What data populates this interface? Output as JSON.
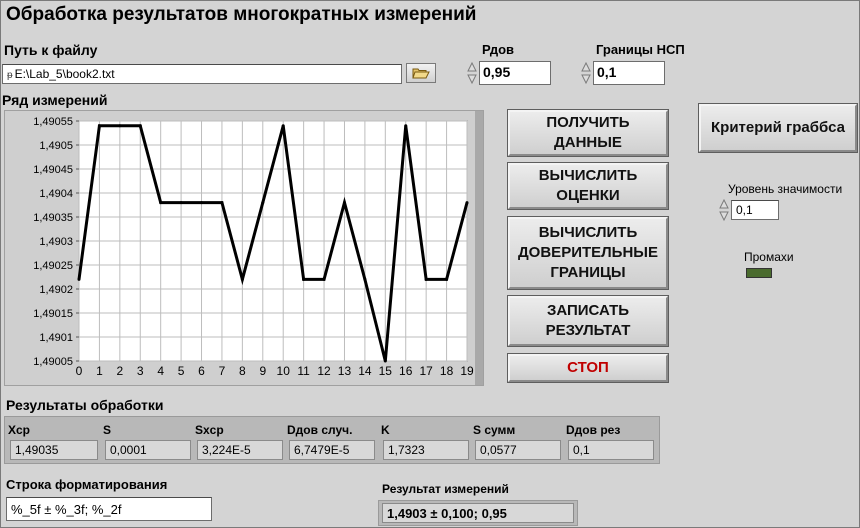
{
  "title": "Обработка результатов многократных измерений",
  "file": {
    "label": "Путь к файлу",
    "value": "E:\\Lab_5\\book2.txt",
    "icon": "folder-icon"
  },
  "rdov": {
    "label": "Рдов",
    "value": "0,95"
  },
  "nsp": {
    "label": "Границы НСП",
    "value": "0,1"
  },
  "chart_label": "Ряд измерений",
  "buttons": {
    "get_data": "ПОЛУЧИТЬ\nДАННЫЕ",
    "compute_estimates": "ВЫЧИСЛИТЬ\nОЦЕНКИ",
    "compute_bounds": "ВЫЧИСЛИТЬ\nДОВЕРИТЕЛЬНЫЕ\nГРАНИЦЫ",
    "write_result": "ЗАПИСАТЬ\nРЕЗУЛЬТАТ",
    "stop": "СТОП",
    "grubbs": "Критерий граббса"
  },
  "significance": {
    "label": "Уровень значимости",
    "value": "0,1"
  },
  "misses": {
    "label": "Промахи",
    "color": "#4a6b2e"
  },
  "results": {
    "label": "Результаты обработки",
    "columns": [
      {
        "header": "Xcp",
        "value": "1,49035"
      },
      {
        "header": "S",
        "value": "0,0001"
      },
      {
        "header": "Sxcp",
        "value": "3,224E-5"
      },
      {
        "header": "Dдов случ.",
        "value": "6,7479E-5"
      },
      {
        "header": "K",
        "value": "1,7323"
      },
      {
        "header": "S сумм",
        "value": "0,0577"
      },
      {
        "header": "Dдов рез",
        "value": "0,1"
      }
    ]
  },
  "format": {
    "label": "Строка форматирования",
    "value": "%_5f ± %_3f; %_2f"
  },
  "measurement": {
    "label": "Результат измерений",
    "value": "1,4903 ± 0,100; 0,95"
  },
  "chart_data": {
    "type": "line",
    "x": [
      0,
      1,
      2,
      3,
      4,
      5,
      6,
      7,
      8,
      9,
      10,
      11,
      12,
      13,
      14,
      15,
      16,
      17,
      18,
      19
    ],
    "series": [
      {
        "values": [
          1.49022,
          1.49054,
          1.49054,
          1.49054,
          1.49038,
          1.49038,
          1.49038,
          1.49038,
          1.49022,
          1.49038,
          1.49054,
          1.49022,
          1.49022,
          1.49038,
          1.49022,
          1.49005,
          1.49054,
          1.49022,
          1.49022,
          1.49038
        ]
      }
    ],
    "x_ticks": [
      "0",
      "1",
      "2",
      "3",
      "4",
      "5",
      "6",
      "7",
      "8",
      "9",
      "10",
      "11",
      "12",
      "13",
      "14",
      "15",
      "16",
      "17",
      "18",
      "19"
    ],
    "y_ticks": [
      "1,49055",
      "1,4905",
      "1,49045",
      "1,4904",
      "1,49035",
      "1,4903",
      "1,49025",
      "1,4902",
      "1,49015",
      "1,4901",
      "1,49005"
    ],
    "xlim": [
      0,
      19
    ],
    "ylim": [
      1.49005,
      1.49055
    ],
    "grid": true
  }
}
